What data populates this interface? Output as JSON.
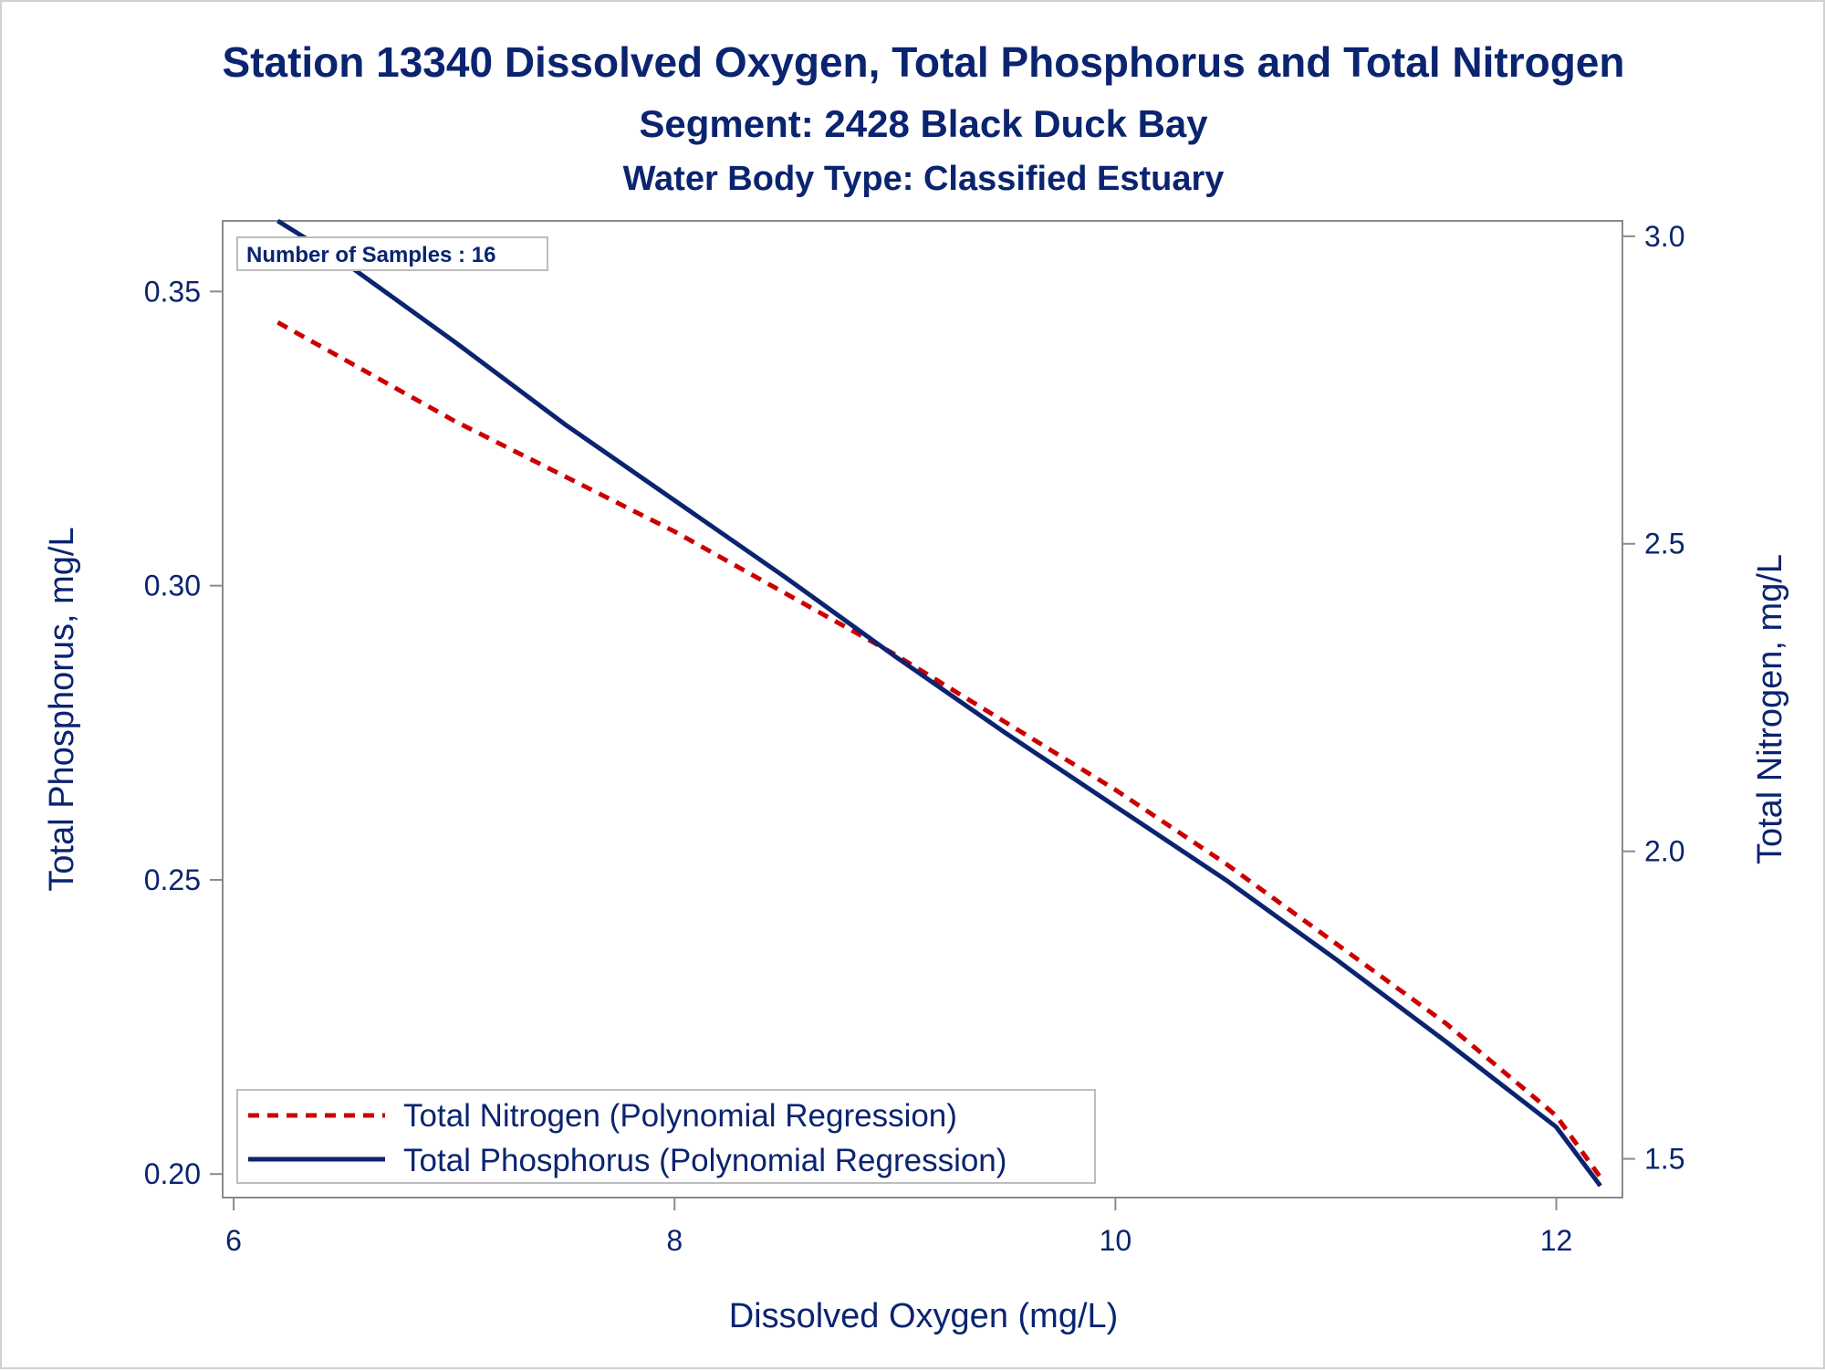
{
  "titles": {
    "line1": "Station 13340  Dissolved Oxygen, Total Phosphorus and Total Nitrogen",
    "line2": "Segment: 2428  Black Duck Bay",
    "line3": "Water Body Type: Classified Estuary"
  },
  "inset": {
    "text": "Number of Samples : 16"
  },
  "chart_data": {
    "type": "line",
    "xlabel": "Dissolved Oxygen (mg/L)",
    "ylabel": "Total Phosphorus, mg/L",
    "y2label": "Total Nitrogen, mg/L",
    "xlim": [
      5.95,
      12.3
    ],
    "ylim": [
      0.196,
      0.362
    ],
    "y2lim": [
      1.437,
      3.025
    ],
    "x_ticks": [
      6,
      8,
      10,
      12
    ],
    "x_tick_labels": [
      "6",
      "8",
      "10",
      "12"
    ],
    "y_ticks": [
      0.2,
      0.25,
      0.3,
      0.35
    ],
    "y_tick_labels": [
      "0.20",
      "0.25",
      "0.30",
      "0.35"
    ],
    "y2_ticks": [
      1.5,
      2.0,
      2.5,
      3.0
    ],
    "y2_tick_labels": [
      "1.5",
      "2.0",
      "2.5",
      "3.0"
    ],
    "grid": false,
    "legend_position": "bottom-left",
    "series": [
      {
        "name": "Total Nitrogen (Polynomial Regression)",
        "axis": "right",
        "color": "#cc0000",
        "style": "dashed",
        "x": [
          6.2,
          6.5,
          7.0,
          7.5,
          8.0,
          8.5,
          9.0,
          9.5,
          10.0,
          10.5,
          11.0,
          11.5,
          12.0,
          12.2
        ],
        "y": [
          2.86,
          2.8,
          2.7,
          2.61,
          2.52,
          2.42,
          2.32,
          2.21,
          2.1,
          1.98,
          1.85,
          1.72,
          1.57,
          1.47
        ]
      },
      {
        "name": "Total Phosphorus (Polynomial Regression)",
        "axis": "left",
        "color": "#0b2470",
        "style": "solid",
        "x": [
          6.2,
          6.5,
          7.0,
          7.5,
          8.0,
          8.5,
          9.0,
          9.5,
          10.0,
          10.5,
          11.0,
          11.5,
          12.0,
          12.2
        ],
        "y": [
          0.362,
          0.355,
          0.3415,
          0.3275,
          0.3145,
          0.3015,
          0.288,
          0.275,
          0.2625,
          0.25,
          0.2365,
          0.2225,
          0.208,
          0.198
        ]
      }
    ]
  }
}
